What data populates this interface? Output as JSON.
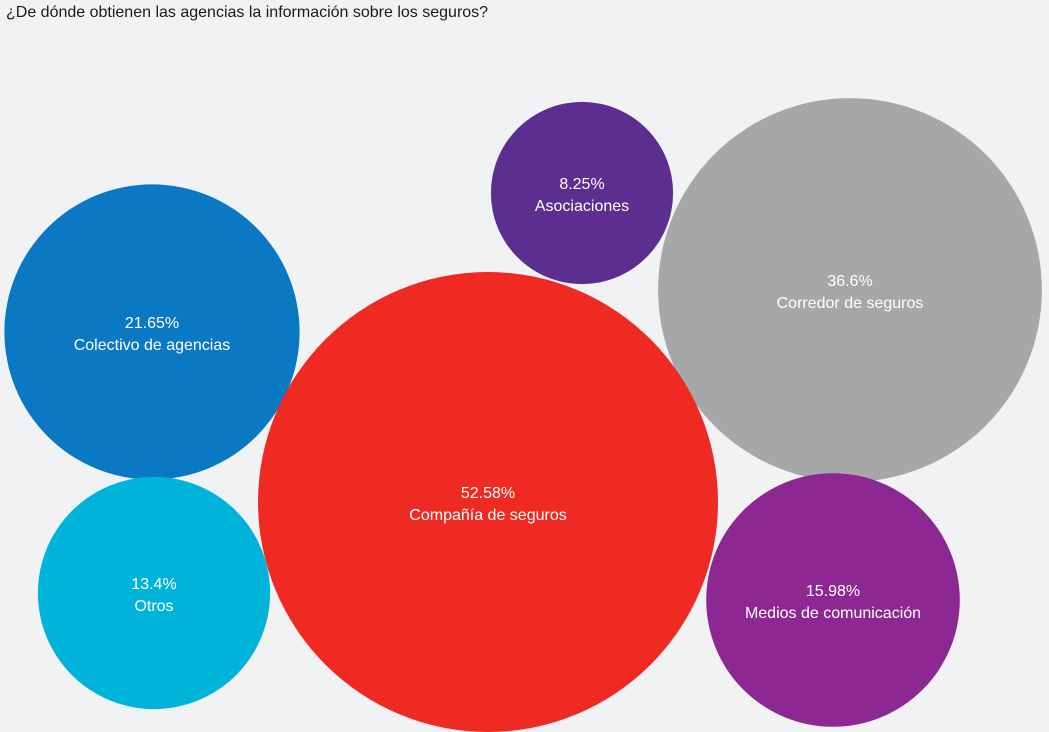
{
  "chart_data": {
    "type": "bubble",
    "title": "¿De dónde obtienen las agencias la información sobre los seguros?",
    "unit": "%",
    "categories": [
      "Asociaciones",
      "Corredor de seguros",
      "Colectivo de agencias",
      "Compañía de seguros",
      "Otros",
      "Medios de comunicación"
    ],
    "values": [
      8.25,
      36.6,
      21.65,
      52.58,
      13.4,
      15.98
    ],
    "value_labels": [
      "8.25%",
      "36.6%",
      "21.65%",
      "52.58%",
      "13.4%",
      "15.98%"
    ],
    "colors": [
      "#5b2e8f",
      "#a6a7a9",
      "#0a78c2",
      "#ee2a22",
      "#00b4d9",
      "#8d2892"
    ],
    "legend": "none",
    "grid": false
  }
}
